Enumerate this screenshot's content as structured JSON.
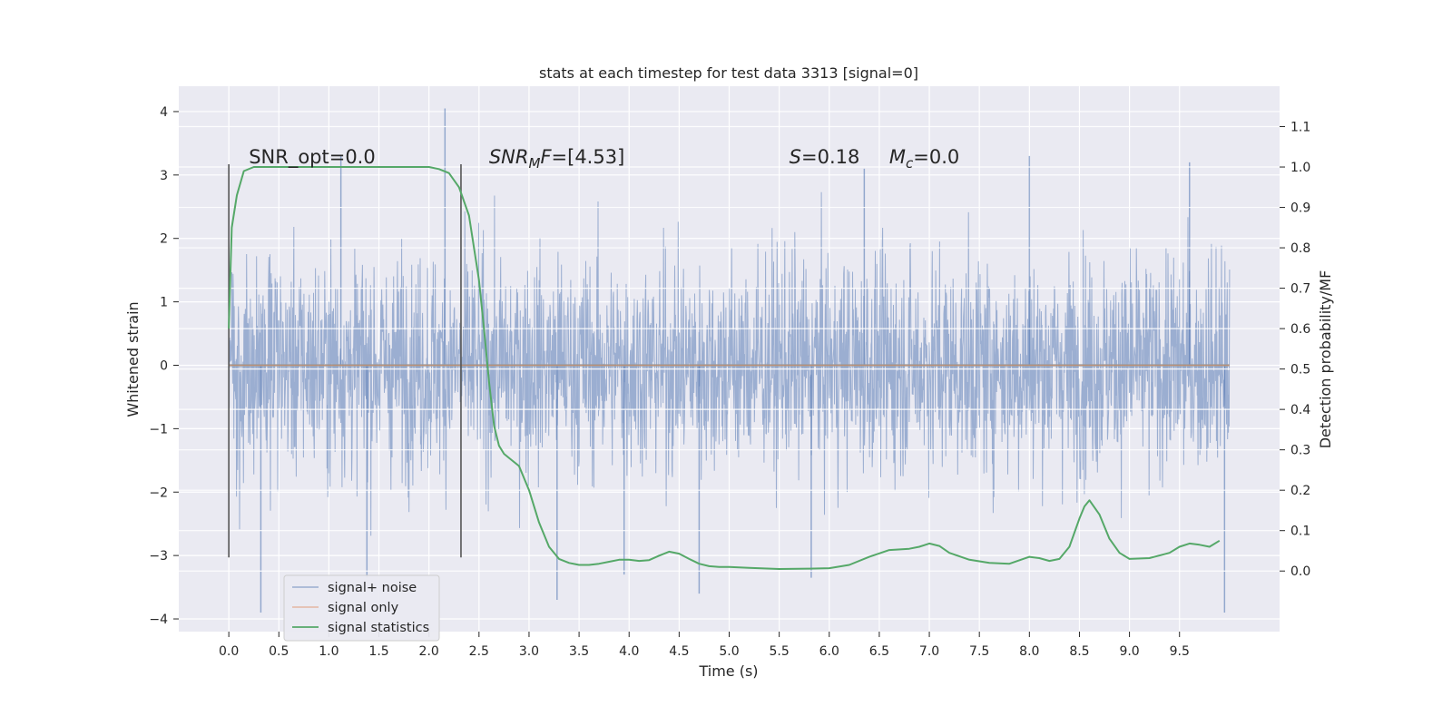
{
  "chart_data": {
    "type": "line",
    "title": "stats at each timestep for test data 3313 [signal=0]",
    "xlabel": "Time (s)",
    "ylabel": "Whitened strain",
    "y2label": "Detection probability/MF",
    "xlim": [
      -0.5,
      10.5
    ],
    "ylim": [
      -4.2,
      4.4
    ],
    "y2lim": [
      -0.15,
      1.2
    ],
    "xticks": [
      "0.0",
      "0.5",
      "1.0",
      "1.5",
      "2.0",
      "2.5",
      "3.0",
      "3.5",
      "4.0",
      "4.5",
      "5.0",
      "5.5",
      "6.0",
      "6.5",
      "7.0",
      "7.5",
      "8.0",
      "8.5",
      "9.0",
      "9.5"
    ],
    "yticks": [
      "4",
      "3",
      "2",
      "1",
      "0",
      "−1",
      "−2",
      "−3",
      "−4"
    ],
    "y2ticks": [
      "1.1",
      "1.0",
      "0.9",
      "0.8",
      "0.7",
      "0.6",
      "0.5",
      "0.4",
      "0.3",
      "0.2",
      "0.1",
      "0.0"
    ],
    "grid": true,
    "legend_position": "lower-left",
    "noise": {
      "duration": 10.0,
      "envelope": [
        -2.2,
        2.2
      ],
      "spikes": [
        {
          "t": 2.16,
          "v": 4.05
        },
        {
          "t": 0.32,
          "v": -3.9
        },
        {
          "t": 9.95,
          "v": -3.9
        },
        {
          "t": 3.28,
          "v": -3.7
        },
        {
          "t": 1.12,
          "v": 3.3
        },
        {
          "t": 6.35,
          "v": 3.1
        },
        {
          "t": 8.0,
          "v": 3.3
        },
        {
          "t": 4.7,
          "v": -3.6
        },
        {
          "t": 5.82,
          "v": -3.35
        },
        {
          "t": 9.6,
          "v": 3.2
        },
        {
          "t": 3.95,
          "v": -3.3
        },
        {
          "t": 1.38,
          "v": -3.35
        }
      ]
    },
    "signal_only": {
      "value": 0.0
    },
    "segment_markers": [
      0.0,
      2.32
    ],
    "series": [
      {
        "name": "signal statistics",
        "axis": "right",
        "x": [
          0.0,
          0.03,
          0.08,
          0.15,
          0.25,
          0.4,
          0.6,
          1.0,
          1.5,
          2.0,
          2.1,
          2.2,
          2.3,
          2.4,
          2.5,
          2.55,
          2.6,
          2.65,
          2.7,
          2.75,
          2.8,
          2.9,
          3.0,
          3.1,
          3.2,
          3.3,
          3.4,
          3.5,
          3.6,
          3.7,
          3.8,
          3.9,
          4.0,
          4.1,
          4.2,
          4.3,
          4.4,
          4.5,
          4.6,
          4.7,
          4.8,
          4.9,
          5.0,
          5.2,
          5.5,
          5.8,
          6.0,
          6.2,
          6.4,
          6.6,
          6.8,
          6.9,
          7.0,
          7.1,
          7.2,
          7.4,
          7.6,
          7.8,
          8.0,
          8.1,
          8.2,
          8.3,
          8.4,
          8.5,
          8.55,
          8.6,
          8.7,
          8.8,
          8.9,
          9.0,
          9.2,
          9.4,
          9.5,
          9.6,
          9.7,
          9.8,
          9.9
        ],
        "values": [
          0.6,
          0.85,
          0.93,
          0.99,
          1.0,
          1.0,
          1.0,
          1.0,
          1.0,
          1.0,
          0.995,
          0.985,
          0.95,
          0.88,
          0.72,
          0.6,
          0.47,
          0.36,
          0.31,
          0.29,
          0.28,
          0.26,
          0.2,
          0.12,
          0.06,
          0.03,
          0.02,
          0.015,
          0.015,
          0.018,
          0.023,
          0.028,
          0.028,
          0.025,
          0.027,
          0.038,
          0.048,
          0.043,
          0.03,
          0.018,
          0.012,
          0.01,
          0.01,
          0.008,
          0.005,
          0.006,
          0.007,
          0.015,
          0.035,
          0.052,
          0.055,
          0.06,
          0.068,
          0.062,
          0.045,
          0.028,
          0.02,
          0.018,
          0.035,
          0.032,
          0.025,
          0.03,
          0.06,
          0.13,
          0.16,
          0.175,
          0.14,
          0.08,
          0.045,
          0.03,
          0.032,
          0.045,
          0.06,
          0.068,
          0.065,
          0.06,
          0.075
        ]
      }
    ],
    "annotations": [
      {
        "kind": "plain",
        "text": "SNR_opt=0.0",
        "x": 0.2
      },
      {
        "kind": "subscript",
        "main": "SNR",
        "sub": "M",
        "rest": "F=[4.53]",
        "x": 2.6
      },
      {
        "kind": "italic",
        "main": "S",
        "rest": "=0.18",
        "x": 5.6
      },
      {
        "kind": "subscript",
        "main": "M",
        "sub": "c",
        "rest": "=0.0",
        "x": 6.6
      }
    ],
    "legend": [
      "signal+ noise",
      "signal only",
      "signal statistics"
    ],
    "colors": {
      "noise": "#4c72b0",
      "signal_only": "#dd8452",
      "statistics": "#55a868",
      "background": "#eaeaf2",
      "grid": "#ffffff",
      "marker": "#555555"
    }
  }
}
